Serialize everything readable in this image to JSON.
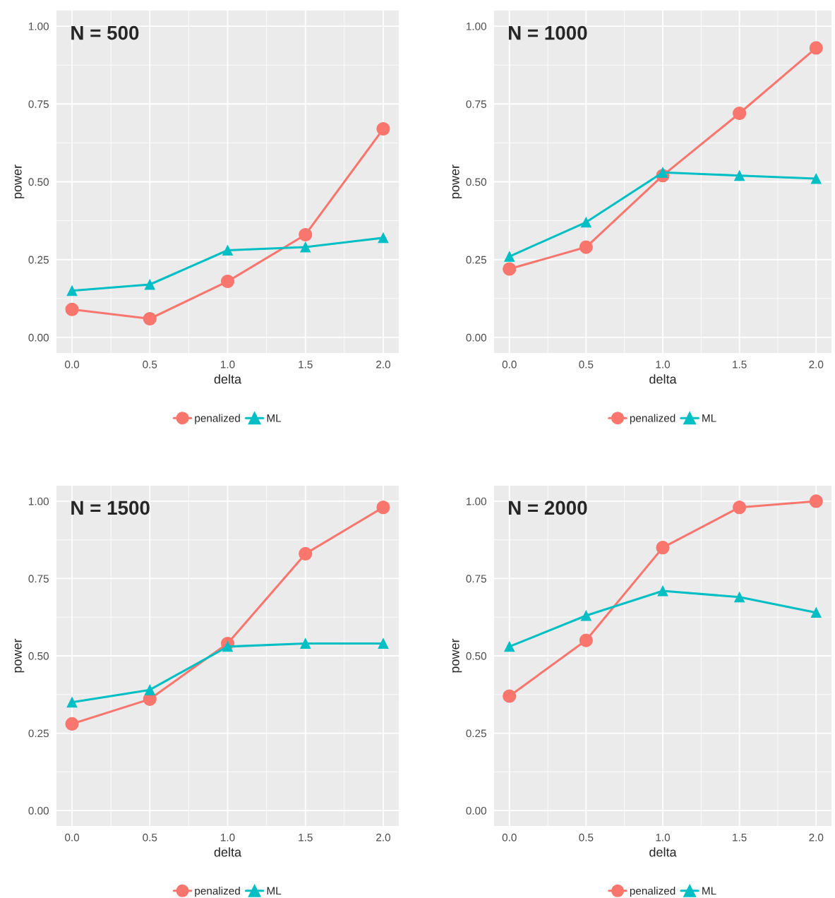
{
  "chart_data": [
    {
      "type": "line",
      "xlabel": "delta",
      "ylabel": "power",
      "annotations": [
        "N = 500"
      ],
      "x": [
        0,
        0.5,
        1,
        1.5,
        2
      ],
      "xlim": [
        -0.1,
        2.1
      ],
      "ylim": [
        -0.05,
        1.05
      ],
      "xticks": [
        {
          "value": 0,
          "label": "0.0"
        },
        {
          "value": 0.5,
          "label": "0.5"
        },
        {
          "value": 1,
          "label": "1.0"
        },
        {
          "value": 1.5,
          "label": "1.5"
        },
        {
          "value": 2,
          "label": "2.0"
        }
      ],
      "yticks": [
        {
          "value": 0,
          "label": "0.00"
        },
        {
          "value": 0.25,
          "label": "0.25"
        },
        {
          "value": 0.5,
          "label": "0.50"
        },
        {
          "value": 0.75,
          "label": "0.75"
        },
        {
          "value": 1,
          "label": "1.00"
        }
      ],
      "grid": true,
      "legend": "bottom",
      "series": [
        {
          "name": "penalized",
          "color": "#f8766d",
          "marker": "circle",
          "values": [
            0.09,
            0.06,
            0.18,
            0.33,
            0.67
          ]
        },
        {
          "name": "ML",
          "color": "#00bfc4",
          "marker": "triangle",
          "values": [
            0.15,
            0.17,
            0.28,
            0.29,
            0.32
          ]
        }
      ]
    },
    {
      "type": "line",
      "xlabel": "delta",
      "ylabel": "power",
      "annotations": [
        "N = 1000"
      ],
      "x": [
        0,
        0.5,
        1,
        1.5,
        2
      ],
      "xlim": [
        -0.1,
        2.1
      ],
      "ylim": [
        -0.05,
        1.05
      ],
      "xticks": [
        {
          "value": 0,
          "label": "0.0"
        },
        {
          "value": 0.5,
          "label": "0.5"
        },
        {
          "value": 1,
          "label": "1.0"
        },
        {
          "value": 1.5,
          "label": "1.5"
        },
        {
          "value": 2,
          "label": "2.0"
        }
      ],
      "yticks": [
        {
          "value": 0,
          "label": "0.00"
        },
        {
          "value": 0.25,
          "label": "0.25"
        },
        {
          "value": 0.5,
          "label": "0.50"
        },
        {
          "value": 0.75,
          "label": "0.75"
        },
        {
          "value": 1,
          "label": "1.00"
        }
      ],
      "grid": true,
      "legend": "bottom",
      "series": [
        {
          "name": "penalized",
          "color": "#f8766d",
          "marker": "circle",
          "values": [
            0.22,
            0.29,
            0.52,
            0.72,
            0.93
          ]
        },
        {
          "name": "ML",
          "color": "#00bfc4",
          "marker": "triangle",
          "values": [
            0.26,
            0.37,
            0.53,
            0.52,
            0.51
          ]
        }
      ]
    },
    {
      "type": "line",
      "xlabel": "delta",
      "ylabel": "power",
      "annotations": [
        "N = 1500"
      ],
      "x": [
        0,
        0.5,
        1,
        1.5,
        2
      ],
      "xlim": [
        -0.1,
        2.1
      ],
      "ylim": [
        -0.05,
        1.05
      ],
      "xticks": [
        {
          "value": 0,
          "label": "0.0"
        },
        {
          "value": 0.5,
          "label": "0.5"
        },
        {
          "value": 1,
          "label": "1.0"
        },
        {
          "value": 1.5,
          "label": "1.5"
        },
        {
          "value": 2,
          "label": "2.0"
        }
      ],
      "yticks": [
        {
          "value": 0,
          "label": "0.00"
        },
        {
          "value": 0.25,
          "label": "0.25"
        },
        {
          "value": 0.5,
          "label": "0.50"
        },
        {
          "value": 0.75,
          "label": "0.75"
        },
        {
          "value": 1,
          "label": "1.00"
        }
      ],
      "grid": true,
      "legend": "bottom",
      "series": [
        {
          "name": "penalized",
          "color": "#f8766d",
          "marker": "circle",
          "values": [
            0.28,
            0.36,
            0.54,
            0.83,
            0.98
          ]
        },
        {
          "name": "ML",
          "color": "#00bfc4",
          "marker": "triangle",
          "values": [
            0.35,
            0.39,
            0.53,
            0.54,
            0.54
          ]
        }
      ]
    },
    {
      "type": "line",
      "xlabel": "delta",
      "ylabel": "power",
      "annotations": [
        "N = 2000"
      ],
      "x": [
        0,
        0.5,
        1,
        1.5,
        2
      ],
      "xlim": [
        -0.1,
        2.1
      ],
      "ylim": [
        -0.05,
        1.05
      ],
      "xticks": [
        {
          "value": 0,
          "label": "0.0"
        },
        {
          "value": 0.5,
          "label": "0.5"
        },
        {
          "value": 1,
          "label": "1.0"
        },
        {
          "value": 1.5,
          "label": "1.5"
        },
        {
          "value": 2,
          "label": "2.0"
        }
      ],
      "yticks": [
        {
          "value": 0,
          "label": "0.00"
        },
        {
          "value": 0.25,
          "label": "0.25"
        },
        {
          "value": 0.5,
          "label": "0.50"
        },
        {
          "value": 0.75,
          "label": "0.75"
        },
        {
          "value": 1,
          "label": "1.00"
        }
      ],
      "grid": true,
      "legend": "bottom",
      "series": [
        {
          "name": "penalized",
          "color": "#f8766d",
          "marker": "circle",
          "values": [
            0.37,
            0.55,
            0.85,
            0.98,
            1.0
          ]
        },
        {
          "name": "ML",
          "color": "#00bfc4",
          "marker": "triangle",
          "values": [
            0.53,
            0.63,
            0.71,
            0.69,
            0.64
          ]
        }
      ]
    }
  ]
}
